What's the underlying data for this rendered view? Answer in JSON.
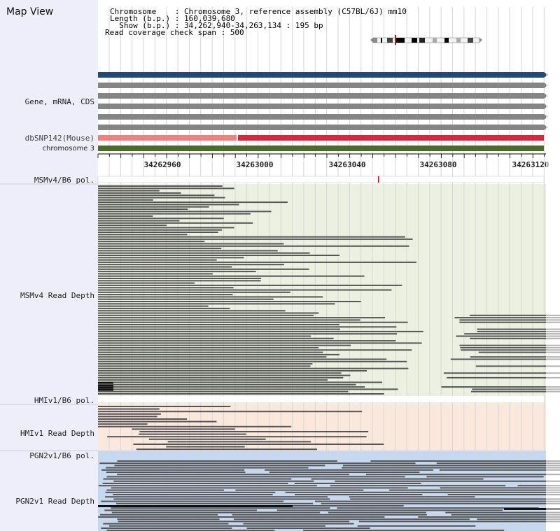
{
  "title": "Map View",
  "info": {
    "chromosome": "Chromosome    : Chromosome 3, reference assembly (C57BL/6J) mm10",
    "length": "Length (b.p.) : 160,039,680",
    "show": "  Show (b.p.) : 34,262,940-34,263,134 : 195 bp",
    "coverage": "Read coverage check span : 500"
  },
  "track_labels": {
    "gene": "Gene, mRNA, CDS",
    "dbsnp": "dbSNP142(Mouse)",
    "chromosome": "chromosome 3",
    "msm_pol": "MSMv4/B6 pol.",
    "msm_depth": "MSMv4 Read Depth",
    "hmi_pol": "HMIv1/B6 pol.",
    "hmi_depth": "HMIv1 Read Depth",
    "pgn_pol": "PGN2v1/B6 pol.",
    "pgn_depth": "PGN2v1 Read Depth"
  },
  "ruler_ticks": [
    "34262960",
    "34263000",
    "34263040",
    "34263080",
    "34263120"
  ],
  "colors": {
    "gene_blue": "#21497d",
    "gene_gray": "#858585",
    "snp_pink": "#f08080",
    "snp_red": "#d9263a",
    "chrom_green": "#4b6b2a",
    "msm_bg": "#ebf0e1",
    "hmi_bg": "#fbe8dc",
    "pgn_bg": "#c6d8ef",
    "read": "#555555"
  }
}
